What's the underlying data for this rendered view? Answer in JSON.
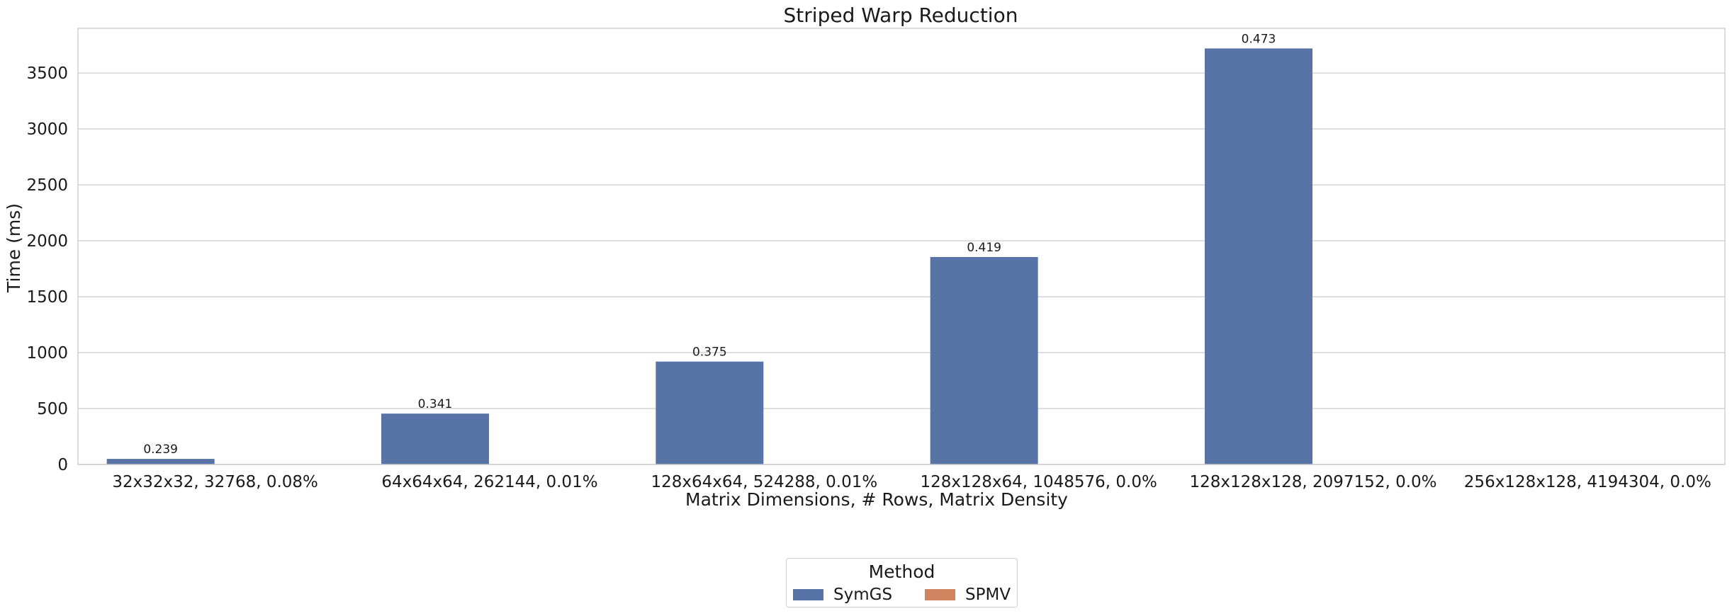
{
  "chart_data": {
    "type": "bar",
    "title": "Striped Warp Reduction",
    "xlabel": "Matrix Dimensions, # Rows, Matrix Density",
    "ylabel": "Time (ms)",
    "ylim": [
      0,
      3900
    ],
    "yticks": [
      0,
      500,
      1000,
      1500,
      2000,
      2500,
      3000,
      3500
    ],
    "grid": true,
    "categories": [
      "32x32x32, 32768, 0.08%",
      "64x64x64, 262144, 0.01%",
      "128x64x64, 524288, 0.01%",
      "128x128x64, 1048576, 0.0%",
      "128x128x128, 2097152, 0.0%",
      "256x128x128, 4194304, 0.0%"
    ],
    "series": [
      {
        "name": "SymGS",
        "color": "#5874a6",
        "values": [
          50,
          455,
          920,
          1855,
          3720,
          null
        ],
        "labels": [
          "0.239",
          "0.341",
          "0.375",
          "0.419",
          "0.473",
          null
        ]
      },
      {
        "name": "SPMV",
        "color": "#d0845f",
        "values": [
          0,
          0,
          0,
          0,
          0,
          null
        ],
        "labels": [
          null,
          null,
          null,
          null,
          null,
          null
        ]
      }
    ],
    "legend": {
      "title": "Method",
      "position": "bottom-center"
    }
  }
}
